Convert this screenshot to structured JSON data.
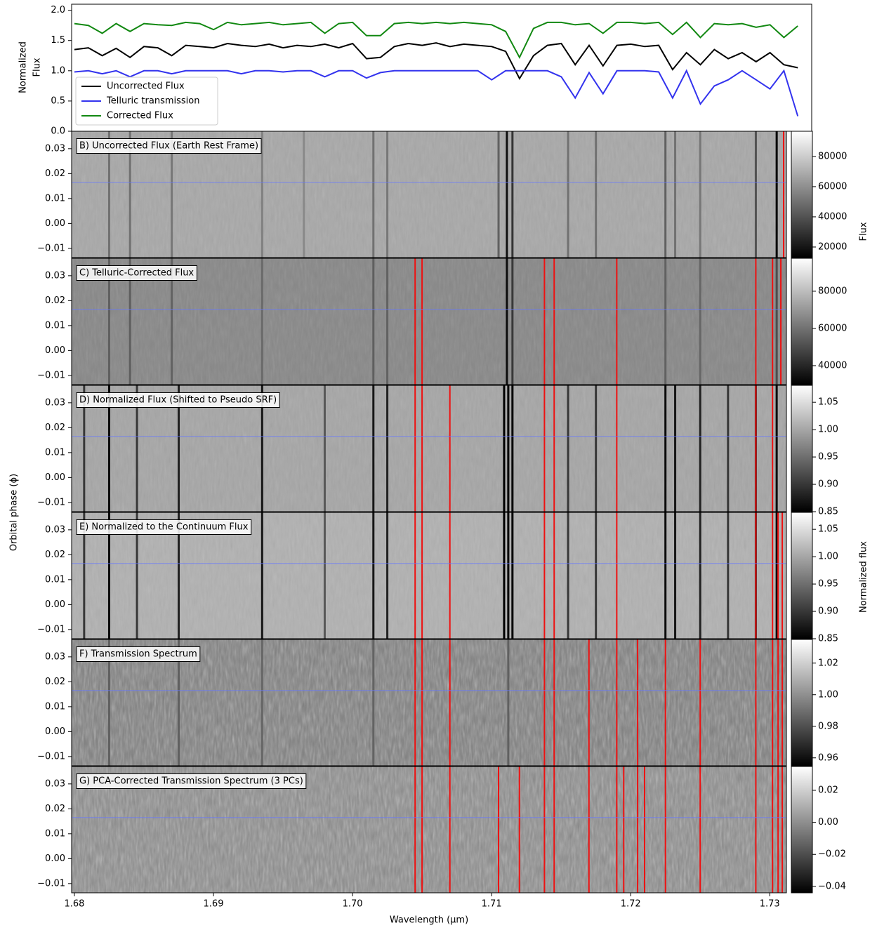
{
  "chart_data": [
    {
      "type": "line",
      "ylabel": [
        "Normalized",
        "Flux"
      ],
      "xlim": [
        1.6798,
        1.733
      ],
      "ylim": [
        0,
        2.1
      ],
      "yticks": [
        {
          "value": 0,
          "label": "0.0"
        },
        {
          "value": 0.5,
          "label": "0.5"
        },
        {
          "value": 1,
          "label": "1.0"
        },
        {
          "value": 1.5,
          "label": "1.5"
        },
        {
          "value": 2,
          "label": "2.0"
        }
      ],
      "legend": "upper left",
      "x": [
        1.68,
        1.681,
        1.682,
        1.683,
        1.684,
        1.685,
        1.686,
        1.687,
        1.688,
        1.689,
        1.69,
        1.691,
        1.692,
        1.693,
        1.694,
        1.695,
        1.696,
        1.697,
        1.698,
        1.699,
        1.7,
        1.701,
        1.702,
        1.703,
        1.704,
        1.705,
        1.706,
        1.707,
        1.708,
        1.709,
        1.71,
        1.711,
        1.712,
        1.713,
        1.714,
        1.715,
        1.716,
        1.717,
        1.718,
        1.719,
        1.72,
        1.721,
        1.722,
        1.723,
        1.724,
        1.725,
        1.726,
        1.727,
        1.728,
        1.729,
        1.73,
        1.731,
        1.732
      ],
      "series": [
        {
          "name": "Uncorrected Flux",
          "color": "#000000",
          "values": [
            1.35,
            1.38,
            1.25,
            1.37,
            1.22,
            1.4,
            1.38,
            1.25,
            1.42,
            1.4,
            1.38,
            1.45,
            1.42,
            1.4,
            1.44,
            1.38,
            1.42,
            1.4,
            1.44,
            1.38,
            1.45,
            1.2,
            1.22,
            1.4,
            1.45,
            1.42,
            1.46,
            1.4,
            1.44,
            1.42,
            1.4,
            1.32,
            0.87,
            1.25,
            1.42,
            1.45,
            1.1,
            1.42,
            1.08,
            1.42,
            1.44,
            1.4,
            1.42,
            1.02,
            1.3,
            1.1,
            1.35,
            1.2,
            1.3,
            1.15,
            1.3,
            1.1,
            1.05
          ]
        },
        {
          "name": "Telluric transmission",
          "color": "#3333ee",
          "values": [
            0.98,
            1.0,
            0.95,
            1.0,
            0.9,
            1.0,
            1.0,
            0.95,
            1.0,
            1.0,
            1.0,
            1.0,
            0.95,
            1.0,
            1.0,
            0.98,
            1.0,
            1.0,
            0.9,
            1.0,
            1.0,
            0.88,
            0.97,
            1.0,
            1.0,
            1.0,
            1.0,
            1.0,
            1.0,
            1.0,
            0.85,
            1.0,
            1.0,
            1.0,
            1.0,
            0.9,
            0.55,
            0.97,
            0.62,
            1.0,
            1.0,
            1.0,
            0.98,
            0.55,
            1.0,
            0.45,
            0.75,
            0.85,
            1.0,
            0.85,
            0.7,
            1.0,
            0.25
          ]
        },
        {
          "name": "Corrected Flux",
          "color": "#118811",
          "values": [
            1.78,
            1.75,
            1.62,
            1.78,
            1.65,
            1.78,
            1.76,
            1.75,
            1.8,
            1.78,
            1.68,
            1.8,
            1.76,
            1.78,
            1.8,
            1.76,
            1.78,
            1.8,
            1.62,
            1.78,
            1.8,
            1.58,
            1.58,
            1.78,
            1.8,
            1.78,
            1.8,
            1.78,
            1.8,
            1.78,
            1.76,
            1.65,
            1.22,
            1.7,
            1.8,
            1.8,
            1.76,
            1.78,
            1.62,
            1.8,
            1.8,
            1.78,
            1.8,
            1.6,
            1.8,
            1.55,
            1.78,
            1.76,
            1.78,
            1.72,
            1.76,
            1.55,
            1.74
          ]
        }
      ]
    },
    {
      "type": "heatmap",
      "label": "B) Uncorrected Flux (Earth Rest Frame)",
      "xlim": [
        1.6798,
        1.7312
      ],
      "ylim": [
        -0.0137,
        0.037
      ],
      "yticks": [
        {
          "value": -0.01,
          "label": "−0.01"
        },
        {
          "value": 0,
          "label": "0.00"
        },
        {
          "value": 0.01,
          "label": "0.01"
        },
        {
          "value": 0.02,
          "label": "0.02"
        },
        {
          "value": 0.03,
          "label": "0.03"
        }
      ],
      "clim": [
        13000,
        96700
      ],
      "cticks": [
        20000,
        40000,
        60000,
        80000
      ],
      "colorbar_label": "Flux",
      "background_value": 68000,
      "phase_marker": 0.0165,
      "line_x": [
        1.6825,
        1.684,
        1.687,
        1.6935,
        1.6965,
        1.7015,
        1.7025,
        1.7105,
        1.7111,
        1.7115,
        1.7155,
        1.7175,
        1.7225,
        1.7232,
        1.725,
        1.729,
        1.7305
      ],
      "line_values": [
        50000,
        50000,
        52000,
        55000,
        58000,
        50000,
        52000,
        45000,
        18000,
        30000,
        50000,
        50000,
        45000,
        50000,
        52000,
        40000,
        15000
      ],
      "masked_x": [
        1.731
      ]
    },
    {
      "type": "heatmap",
      "label": "C) Telluric-Corrected Flux",
      "xlim": [
        1.6798,
        1.7312
      ],
      "ylim": [
        -0.0137,
        0.037
      ],
      "yticks": [
        {
          "value": -0.01,
          "label": "−0.01"
        },
        {
          "value": 0,
          "label": "0.00"
        },
        {
          "value": 0.01,
          "label": "0.01"
        },
        {
          "value": 0.02,
          "label": "0.02"
        },
        {
          "value": 0.03,
          "label": "0.03"
        }
      ],
      "clim": [
        29800,
        97700
      ],
      "cticks": [
        40000,
        60000,
        80000
      ],
      "background_value": 66000,
      "phase_marker": 0.0165,
      "line_x": [
        1.6825,
        1.684,
        1.687,
        1.6935,
        1.7015,
        1.7025,
        1.7111,
        1.7115,
        1.7225,
        1.725,
        1.7305
      ],
      "line_values": [
        55000,
        55000,
        56000,
        58000,
        55000,
        56000,
        33000,
        45000,
        56000,
        57000,
        50000
      ],
      "masked_x": [
        1.7045,
        1.705,
        1.7138,
        1.7145,
        1.719,
        1.729,
        1.7302,
        1.7308
      ]
    },
    {
      "type": "heatmap",
      "label": "D) Normalized Flux (Shifted to Pseudo SRF)",
      "ylabel": "Orbital phase (ϕ)",
      "xlim": [
        1.6798,
        1.7312
      ],
      "ylim": [
        -0.0137,
        0.037
      ],
      "yticks": [
        {
          "value": -0.01,
          "label": "−0.01"
        },
        {
          "value": 0,
          "label": "0.00"
        },
        {
          "value": 0.01,
          "label": "0.01"
        },
        {
          "value": 0.02,
          "label": "0.02"
        },
        {
          "value": 0.03,
          "label": "0.03"
        }
      ],
      "clim": [
        0.85,
        1.081
      ],
      "cticks": [
        0.85,
        {
          "value": 0.9,
          "label": "0.90"
        },
        0.95,
        {
          "value": 1,
          "label": "1.00"
        },
        1.05
      ],
      "colorbar_label": "Normalized flux",
      "background_value": 1.0,
      "phase_marker": 0.0165,
      "line_x": [
        1.6807,
        1.6825,
        1.6845,
        1.6875,
        1.6935,
        1.698,
        1.7015,
        1.7025,
        1.7109,
        1.7112,
        1.7115,
        1.7155,
        1.7175,
        1.7225,
        1.7232,
        1.725,
        1.727,
        1.729,
        1.7305
      ],
      "line_values": [
        0.9,
        0.86,
        0.9,
        0.88,
        0.87,
        0.93,
        0.87,
        0.88,
        0.85,
        0.85,
        0.85,
        0.9,
        0.9,
        0.86,
        0.87,
        0.88,
        0.9,
        0.88,
        0.86
      ],
      "masked_x": [
        1.7045,
        1.705,
        1.707,
        1.7138,
        1.7145,
        1.719,
        1.729,
        1.7302
      ]
    },
    {
      "type": "heatmap",
      "label": "E) Normalized to the Continuum Flux",
      "xlim": [
        1.6798,
        1.7312
      ],
      "ylim": [
        -0.0137,
        0.037
      ],
      "yticks": [
        {
          "value": -0.01,
          "label": "−0.01"
        },
        {
          "value": 0,
          "label": "0.00"
        },
        {
          "value": 0.01,
          "label": "0.01"
        },
        {
          "value": 0.02,
          "label": "0.02"
        },
        {
          "value": 0.03,
          "label": "0.03"
        }
      ],
      "clim": [
        0.85,
        1.081
      ],
      "cticks": [
        0.85,
        {
          "value": 0.9,
          "label": "0.90"
        },
        0.95,
        {
          "value": 1,
          "label": "1.00"
        },
        1.05
      ],
      "background_value": 1.01,
      "phase_marker": 0.0165,
      "line_x": [
        1.6807,
        1.6825,
        1.6845,
        1.6875,
        1.6935,
        1.698,
        1.7015,
        1.7025,
        1.7109,
        1.7112,
        1.7115,
        1.7155,
        1.7175,
        1.7225,
        1.7232,
        1.725,
        1.727,
        1.729,
        1.7305
      ],
      "line_values": [
        0.9,
        0.86,
        0.9,
        0.88,
        0.87,
        0.93,
        0.87,
        0.88,
        0.85,
        0.85,
        0.85,
        0.9,
        0.9,
        0.86,
        0.87,
        0.88,
        0.9,
        0.88,
        0.86
      ],
      "masked_x": [
        1.7045,
        1.705,
        1.707,
        1.7138,
        1.7145,
        1.719,
        1.729,
        1.7302,
        1.7306,
        1.7309
      ]
    },
    {
      "type": "heatmap",
      "label": "F) Transmission Spectrum",
      "xlim": [
        1.6798,
        1.7312
      ],
      "ylim": [
        -0.0137,
        0.037
      ],
      "yticks": [
        {
          "value": -0.01,
          "label": "−0.01"
        },
        {
          "value": 0,
          "label": "0.00"
        },
        {
          "value": 0.01,
          "label": "0.01"
        },
        {
          "value": 0.02,
          "label": "0.02"
        },
        {
          "value": 0.03,
          "label": "0.03"
        }
      ],
      "clim": [
        0.955,
        1.035
      ],
      "cticks": [
        0.96,
        0.98,
        {
          "value": 1,
          "label": "1.00"
        },
        1.02
      ],
      "background_value": 0.995,
      "phase_marker": 0.0165,
      "line_x": [
        1.6825,
        1.6875,
        1.6935,
        1.7015,
        1.7112
      ],
      "line_values": [
        0.985,
        0.985,
        0.987,
        0.986,
        0.985
      ],
      "masked_x": [
        1.7045,
        1.705,
        1.707,
        1.7138,
        1.7145,
        1.717,
        1.719,
        1.7205,
        1.7225,
        1.725,
        1.729,
        1.7302,
        1.7306,
        1.7309
      ]
    },
    {
      "type": "heatmap",
      "label": "G) PCA-Corrected Transmission Spectrum (3 PCs)",
      "xlabel": "Wavelength (μm)",
      "xlim": [
        1.6798,
        1.7312
      ],
      "ylim": [
        -0.0137,
        0.037
      ],
      "xticks": [
        1.68,
        1.69,
        {
          "value": 1.7,
          "label": "1.70"
        },
        1.71,
        1.72,
        1.73
      ],
      "yticks": [
        {
          "value": -0.01,
          "label": "−0.01"
        },
        {
          "value": 0,
          "label": "0.00"
        },
        {
          "value": 0.01,
          "label": "0.01"
        },
        {
          "value": 0.02,
          "label": "0.02"
        },
        {
          "value": 0.03,
          "label": "0.03"
        }
      ],
      "clim": [
        -0.044,
        0.0349
      ],
      "cticks": [
        {
          "value": -0.04,
          "label": "−0.04"
        },
        {
          "value": -0.02,
          "label": "−0.02"
        },
        {
          "value": 0,
          "label": "0.00"
        },
        0.02
      ],
      "background_value": 0.0,
      "phase_marker": 0.0165,
      "line_x": [],
      "line_values": [],
      "masked_x": [
        1.7045,
        1.705,
        1.707,
        1.7105,
        1.712,
        1.7138,
        1.7145,
        1.717,
        1.719,
        1.7195,
        1.7205,
        1.721,
        1.7225,
        1.725,
        1.729,
        1.7302,
        1.7306,
        1.7309
      ]
    }
  ]
}
